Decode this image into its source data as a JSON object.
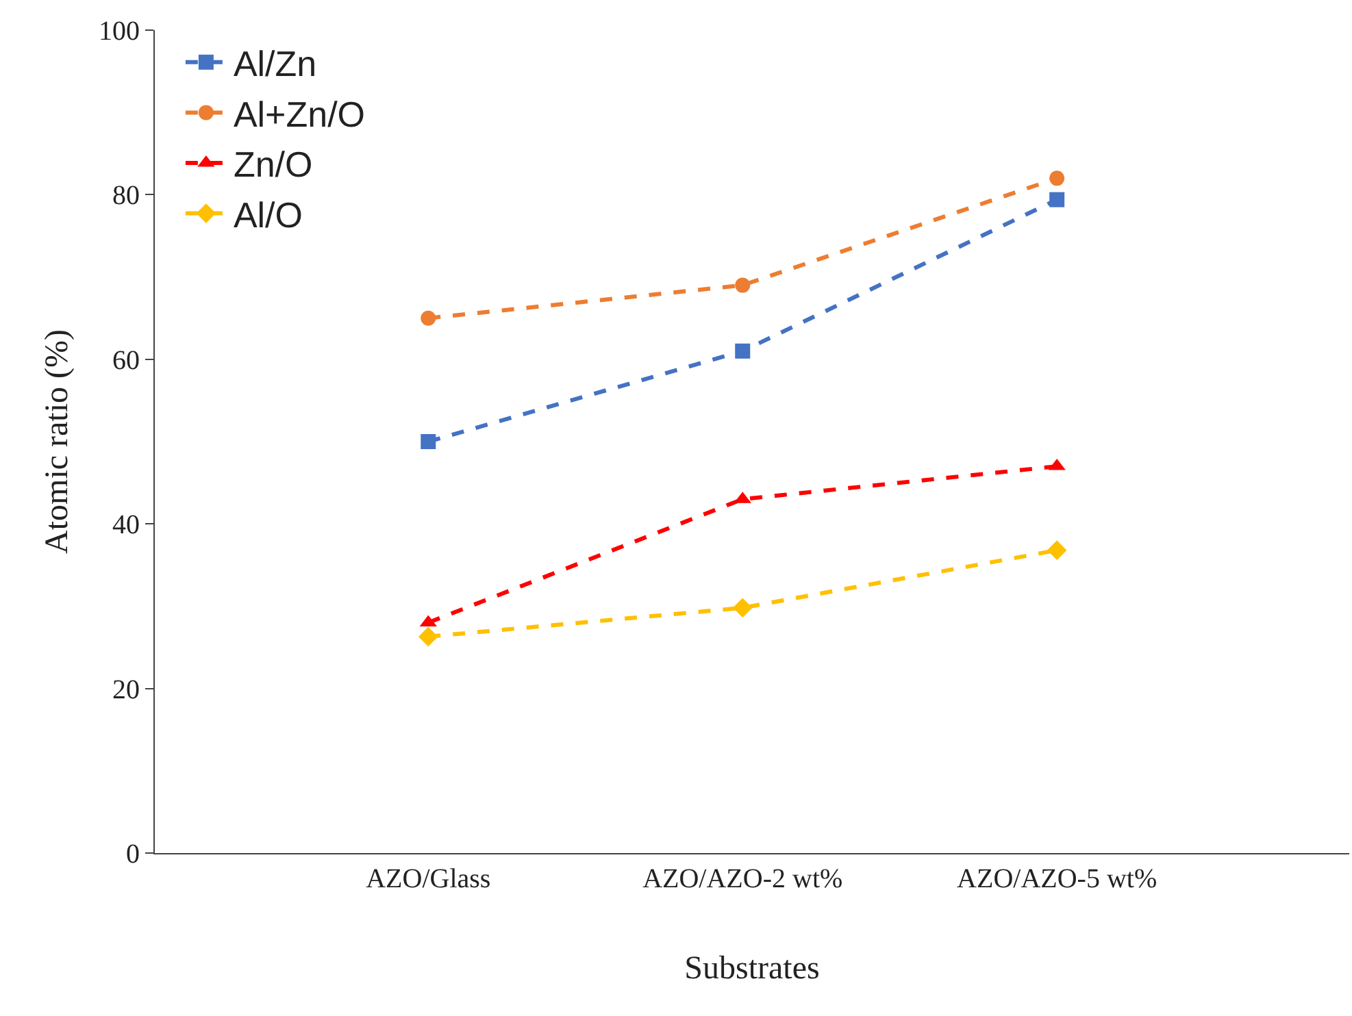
{
  "chart_data": {
    "type": "line",
    "xlabel": "Substrates",
    "ylabel": "Atomic ratio (%)",
    "categories": [
      "AZO/Glass",
      "AZO/AZO-2 wt%",
      "AZO/AZO-5 wt%"
    ],
    "series": [
      {
        "name": "Al/Zn",
        "color": "#4472c4",
        "marker": "square",
        "values": [
          50,
          61,
          79.4
        ]
      },
      {
        "name": "Al+Zn/O",
        "color": "#ed7d31",
        "marker": "circle",
        "values": [
          65,
          69,
          82
        ]
      },
      {
        "name": "Zn/O",
        "color": "#ff0000",
        "marker": "triangle",
        "values": [
          28,
          43,
          47
        ]
      },
      {
        "name": "Al/O",
        "color": "#ffc000",
        "marker": "diamond",
        "values": [
          26.3,
          29.8,
          36.8
        ]
      }
    ],
    "ylim": [
      0,
      100
    ],
    "yticks": [
      0,
      20,
      40,
      60,
      80,
      100
    ],
    "legend": "top left",
    "line_style": "dashed"
  }
}
